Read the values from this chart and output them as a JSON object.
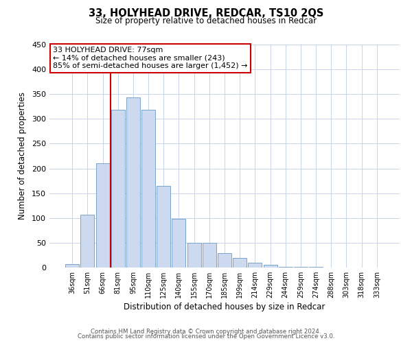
{
  "title": "33, HOLYHEAD DRIVE, REDCAR, TS10 2QS",
  "subtitle": "Size of property relative to detached houses in Redcar",
  "xlabel": "Distribution of detached houses by size in Redcar",
  "ylabel": "Number of detached properties",
  "bar_color": "#ccd9ee",
  "bar_edge_color": "#7aa4cc",
  "categories": [
    "36sqm",
    "51sqm",
    "66sqm",
    "81sqm",
    "95sqm",
    "110sqm",
    "125sqm",
    "140sqm",
    "155sqm",
    "170sqm",
    "185sqm",
    "199sqm",
    "214sqm",
    "229sqm",
    "244sqm",
    "259sqm",
    "274sqm",
    "288sqm",
    "303sqm",
    "318sqm",
    "333sqm"
  ],
  "values": [
    7,
    107,
    211,
    318,
    343,
    319,
    165,
    99,
    50,
    50,
    29,
    19,
    10,
    5,
    2,
    1,
    1,
    0,
    0,
    0,
    0
  ],
  "ylim": [
    0,
    450
  ],
  "yticks": [
    0,
    50,
    100,
    150,
    200,
    250,
    300,
    350,
    400,
    450
  ],
  "vline_index": 2.5,
  "vline_color": "#cc0000",
  "annotation_title": "33 HOLYHEAD DRIVE: 77sqm",
  "annotation_line1": "← 14% of detached houses are smaller (243)",
  "annotation_line2": "85% of semi-detached houses are larger (1,452) →",
  "annotation_box_color": "#ffffff",
  "annotation_box_edge": "#cc0000",
  "footer1": "Contains HM Land Registry data © Crown copyright and database right 2024.",
  "footer2": "Contains public sector information licensed under the Open Government Licence v3.0.",
  "background_color": "#ffffff",
  "grid_color": "#c8d4e8"
}
